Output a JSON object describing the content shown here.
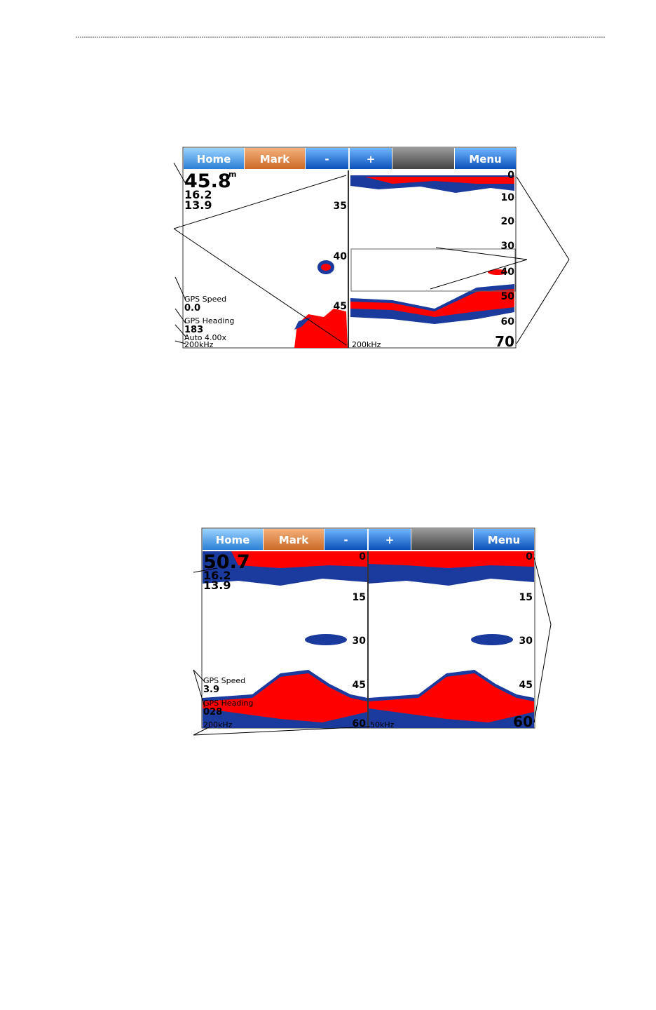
{
  "screens": [
    {
      "buttons": [
        "Home",
        "Mark",
        "-",
        "+",
        "Menu"
      ],
      "left": {
        "depth": "45.8",
        "depth_unit": "m",
        "readouts": [
          "16.2",
          "13.9"
        ],
        "scale": [
          "35",
          "40",
          "45"
        ],
        "gps_speed_label": "GPS Speed",
        "gps_speed": "0.0",
        "gps_heading_label": "GPS Heading",
        "gps_heading": "183",
        "zoom": "Auto  4.00x",
        "frequency": "200kHz"
      },
      "right": {
        "scale": [
          "0",
          "10",
          "20",
          "30",
          "40",
          "50",
          "60",
          "70"
        ],
        "frequency": "200kHz"
      }
    },
    {
      "buttons": [
        "Home",
        "Mark",
        "-",
        "+",
        "Menu"
      ],
      "left": {
        "depth": "50.7",
        "readouts": [
          "16.2",
          "13.9"
        ],
        "scale": [
          "0",
          "15",
          "30",
          "45",
          "60"
        ],
        "gps_speed_label": "GPS Speed",
        "gps_speed": "3.9",
        "gps_heading_label": "GPS Heading",
        "gps_heading": "028",
        "frequency": "200kHz"
      },
      "right": {
        "scale": [
          "0",
          "15",
          "30",
          "45",
          "60"
        ],
        "frequency": "50kHz"
      }
    }
  ]
}
